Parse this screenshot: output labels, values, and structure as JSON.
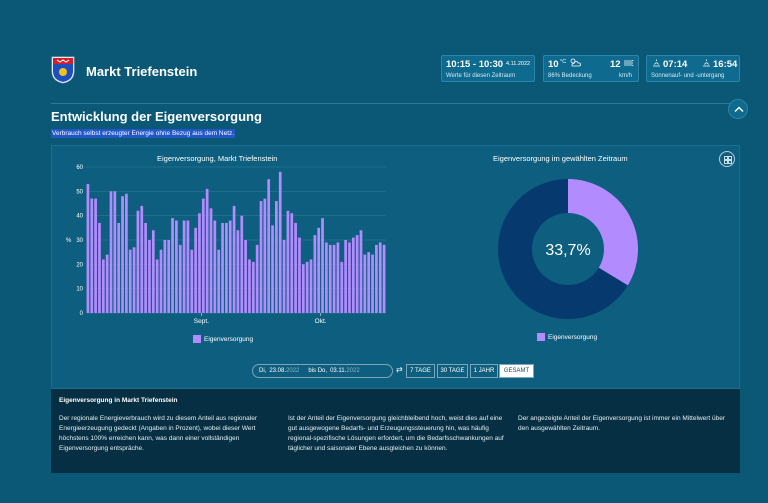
{
  "header": {
    "brand": "Markt Triefenstein",
    "time_box": {
      "range": "10:15 - 10:30",
      "date": "4.11.2022",
      "caption": "Werte für diesen Zeitraum"
    },
    "weather_box": {
      "temp": "10",
      "unit": "°C",
      "cloud_caption": "86% Bedeckung",
      "wind": "12",
      "wind_unit": "km/h",
      "cloud_icon": "cloud-icon",
      "wind_icon": "wind-icon"
    },
    "sun_box": {
      "sunrise": "07:14",
      "sunset": "16:54",
      "caption": "Sonnenauf- und -untergang"
    }
  },
  "section": {
    "title": "Entwicklung der Eigenversorgung",
    "subtitle": "Verbrauch selbst erzeugter Energie ohne Bezug aus dem Netz."
  },
  "chart_data": [
    {
      "type": "bar",
      "title": "Eigenversorgung, Markt Triefenstein",
      "ylabel": "%",
      "ylim": [
        0,
        60
      ],
      "yticks": [
        0,
        10,
        20,
        30,
        40,
        50,
        60
      ],
      "x_tick_labels": [
        "Sept.",
        "Okt."
      ],
      "series": [
        {
          "name": "Eigenversorgung",
          "color": "#b28bff",
          "values": [
            53,
            47,
            47,
            37,
            22,
            24,
            50,
            50,
            37,
            48,
            49,
            26,
            27,
            42,
            44,
            37,
            30,
            34,
            22,
            26,
            30,
            30,
            39,
            38,
            28,
            38,
            38,
            26,
            35,
            41,
            47,
            51,
            43,
            38,
            26,
            37,
            37,
            38,
            44,
            34,
            40,
            30,
            22,
            21,
            28,
            46,
            47,
            55,
            36,
            46,
            58,
            30,
            42,
            41,
            37,
            31,
            20,
            21,
            22,
            32,
            35,
            39,
            29,
            28,
            28,
            29,
            21,
            30,
            29,
            31,
            32,
            34,
            24,
            25,
            24,
            28,
            29,
            28
          ]
        }
      ]
    },
    {
      "type": "pie",
      "title": "Eigenversorgung im gewählten Zeitraum",
      "center_label": "33,7%",
      "values": [
        33.7,
        66.3
      ],
      "colors": [
        "#b28bff",
        "#063a6e"
      ],
      "legend": "Eigenversorgung"
    }
  ],
  "controls": {
    "from_label": "Di,",
    "from_value": "23.08.",
    "from_year": "2022",
    "to_label": "bis Do,",
    "to_value": "03.11.",
    "to_year": "2022",
    "swap_icon": "⇄",
    "buttons": [
      "7 TAGE",
      "30 TAGE",
      "1 JAHR",
      "GESAMT"
    ],
    "active": "GESAMT"
  },
  "info": {
    "title": "Eigenversorgung in Markt Triefenstein",
    "col1": "Der regionale Energieverbrauch wird zu diesem Anteil aus regionaler Energieerzeugung gedeckt (Angaben in Prozent), wobei dieser Wert höchstens 100% erreichen kann, was dann einer vollständigen Eigenversorgung entspräche.",
    "col2": "Ist der Anteil der Eigenversorgung gleichbleibend hoch, weist dies auf eine gut ausgewogene Bedarfs- und Erzeugungssteuerung hin, was häufig regional-spezifische Lösungen erfordert, um die Bedarfsschwankungen auf täglicher und saisonaler Ebene ausgleichen zu können.",
    "col3": "Der angezeigte Anteil der Eigenversorgung ist immer ein Mittelwert über den ausgewählten Zeitraum."
  }
}
